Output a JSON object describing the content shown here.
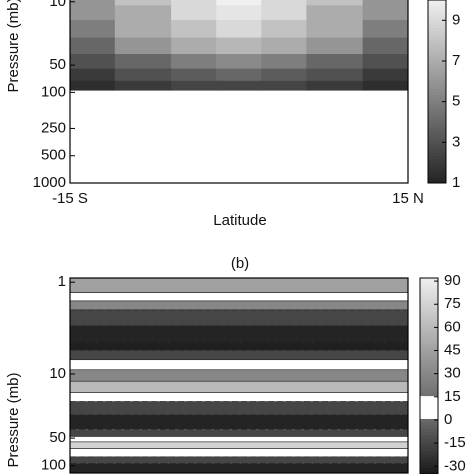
{
  "chart_data": [
    {
      "type": "contour",
      "ylabel": "Pressure (mb)",
      "xlabel": "Latitude",
      "xlim": [
        -15,
        15
      ],
      "xticks": [
        {
          "value": -15,
          "label": "-15 S"
        },
        {
          "value": 15,
          "label": "15 N"
        }
      ],
      "ylim": [
        1000,
        8
      ],
      "log_y": true,
      "yticks": [
        10,
        50,
        100,
        250,
        500,
        1000
      ],
      "lat_edges": [
        -15,
        -11,
        -6,
        -2,
        2,
        6,
        11,
        15
      ],
      "pressure_edges": [
        8,
        11,
        16,
        25,
        38,
        55,
        75,
        95
      ],
      "values": [
        [
          6,
          8,
          9,
          10,
          9,
          8,
          6
        ],
        [
          6,
          7,
          9,
          9.5,
          9,
          7,
          6
        ],
        [
          5,
          7,
          8,
          9,
          8,
          7,
          5
        ],
        [
          4,
          6,
          7,
          7.5,
          7,
          6,
          4
        ],
        [
          3,
          4,
          5,
          5.5,
          5,
          4,
          3
        ],
        [
          2,
          3,
          3.5,
          4,
          3.5,
          3,
          2
        ],
        [
          1.5,
          2,
          2.5,
          2.5,
          2.5,
          2,
          1.5
        ]
      ],
      "clim": [
        1,
        10
      ],
      "cbticks": [
        1,
        3,
        5,
        7,
        9
      ]
    },
    {
      "type": "profile",
      "title": "(b)",
      "ylabel": "Pressure (mb)",
      "ylim": [
        0.9,
        120
      ],
      "log_y": true,
      "yticks": [
        1,
        10,
        50,
        100
      ],
      "pressure_edges": [
        0.9,
        1.3,
        1.6,
        2,
        3,
        4.5,
        5.5,
        7,
        9,
        12,
        16,
        20,
        28,
        40,
        48,
        55,
        65,
        80,
        95,
        120
      ],
      "values": [
        45,
        5,
        30,
        -15,
        -30,
        -32,
        -15,
        5,
        30,
        60,
        5,
        -15,
        -30,
        -15,
        5,
        75,
        5,
        -15,
        -30
      ],
      "clim": [
        -35,
        92
      ],
      "cbticks": [
        90,
        75,
        60,
        45,
        30,
        15,
        0,
        -15,
        -30
      ]
    }
  ]
}
